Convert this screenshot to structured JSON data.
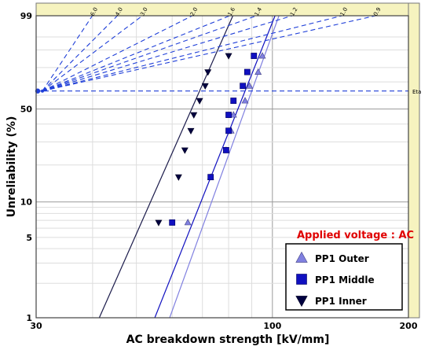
{
  "chart_data": {
    "type": "scatter",
    "scale": "weibull",
    "xlabel": "AC breakdown strength [kV/mm]",
    "ylabel": "Unreliability (%)",
    "xlim": [
      30,
      200
    ],
    "ylim": [
      1,
      99
    ],
    "x_ticks": [
      "30",
      "100",
      "200"
    ],
    "y_ticks": [
      "1",
      "5",
      "10",
      "50",
      "99"
    ],
    "grid": true,
    "annotation": "Applied voltage : AC",
    "eta_label": "Eta",
    "eta_y": 63.2,
    "slope_labels": [
      "6.0",
      "4.0",
      "3.0",
      "2.0",
      "1.6",
      "1.4",
      "1.2",
      "1.0",
      "0.9"
    ],
    "legend": {
      "placement": "bottom-right"
    },
    "series": [
      {
        "name": "PP1 Outer",
        "marker": "triangle-up",
        "color": "#8080e0",
        "line_color": "#8080e0",
        "x": [
          65,
          73,
          79,
          81,
          82,
          87,
          89,
          93,
          95
        ],
        "y": [
          6.7,
          16,
          26,
          36,
          46,
          56,
          67,
          77,
          87
        ],
        "fit": {
          "eta": 90,
          "beta": 11
        }
      },
      {
        "name": "PP1 Middle",
        "marker": "square",
        "color": "#1010c0",
        "line_color": "#1010c0",
        "x": [
          60,
          73,
          79,
          80,
          80,
          82,
          86,
          88,
          91
        ],
        "y": [
          6.7,
          16,
          26,
          36,
          46,
          56,
          67,
          77,
          87
        ],
        "fit": {
          "eta": 87,
          "beta": 10
        }
      },
      {
        "name": "PP1 Inner",
        "marker": "triangle-down",
        "color": "#000040",
        "line_color": "#1a1a4a",
        "x": [
          56,
          62,
          64,
          66,
          67,
          69,
          71,
          72,
          80
        ],
        "y": [
          6.7,
          16,
          26,
          36,
          46,
          56,
          67,
          77,
          87
        ],
        "fit": {
          "eta": 69,
          "beta": 9
        }
      }
    ]
  }
}
